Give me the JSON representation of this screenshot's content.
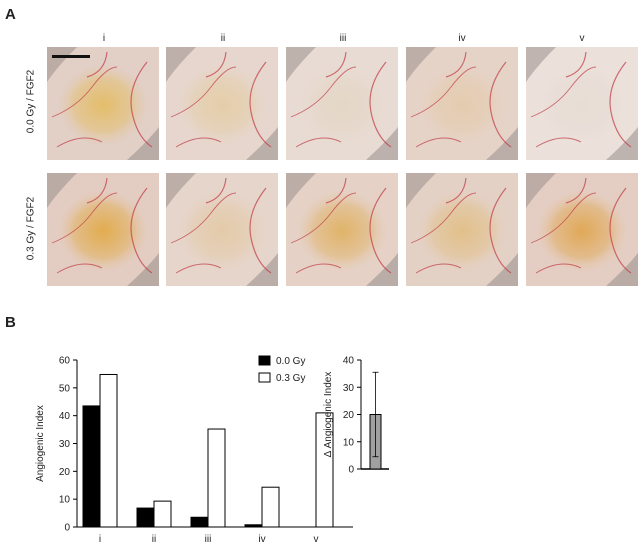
{
  "panel_a": {
    "letter": "A",
    "columns": [
      "i",
      "ii",
      "iii",
      "iv",
      "v"
    ],
    "rows": [
      "0.0 Gy / FGF2",
      "0.3 Gy / FGF2"
    ],
    "photos": [
      {
        "name": "photo-0gy-i",
        "tissue": "#e4b84c",
        "glow": 0.75,
        "bg": "#e2cfc6"
      },
      {
        "name": "photo-0gy-ii",
        "tissue": "#e3c78a",
        "glow": 0.55,
        "bg": "#e6d6cd"
      },
      {
        "name": "photo-0gy-iii",
        "tissue": "#dccfae",
        "glow": 0.35,
        "bg": "#e8dbd3"
      },
      {
        "name": "photo-0gy-iv",
        "tissue": "#e2c38f",
        "glow": 0.45,
        "bg": "#e6d3c8"
      },
      {
        "name": "photo-0gy-v",
        "tissue": "#ddd4c4",
        "glow": 0.25,
        "bg": "#ebe0da"
      },
      {
        "name": "photo-03gy-i",
        "tissue": "#e2a73b",
        "glow": 0.85,
        "bg": "#e3cdc3"
      },
      {
        "name": "photo-03gy-ii",
        "tissue": "#e1bf86",
        "glow": 0.5,
        "bg": "#e6d5cb"
      },
      {
        "name": "photo-03gy-iii",
        "tissue": "#dfac52",
        "glow": 0.8,
        "bg": "#e5d1c6"
      },
      {
        "name": "photo-03gy-iv",
        "tissue": "#e0b769",
        "glow": 0.65,
        "bg": "#e4d1c6"
      },
      {
        "name": "photo-03gy-v",
        "tissue": "#e0a244",
        "glow": 0.85,
        "bg": "#e4cec3"
      }
    ]
  },
  "panel_b": {
    "letter": "B"
  },
  "chart_data": [
    {
      "type": "bar",
      "categories": [
        "i",
        "ii",
        "iii",
        "iv",
        "v"
      ],
      "series": [
        {
          "name": "0.0 Gy",
          "values": [
            43.5,
            6.8,
            3.5,
            0.8,
            0
          ],
          "color": "#000000"
        },
        {
          "name": "0.3 Gy",
          "values": [
            54.8,
            9.3,
            35.2,
            14.3,
            41
          ],
          "color": "#ffffff"
        }
      ],
      "ylabel": "Angiogenic Index",
      "ylim": [
        0,
        60
      ],
      "yticks": [
        0,
        10,
        20,
        30,
        40,
        50,
        60
      ],
      "legend": "top-right",
      "grid": false
    },
    {
      "type": "bar",
      "categories": [
        ""
      ],
      "values": [
        20
      ],
      "error": [
        15.5
      ],
      "color": "#a0a0a0",
      "ylabel": "Δ Angiogenic Index",
      "ylim": [
        0,
        40
      ],
      "yticks": [
        0,
        10,
        20,
        30,
        40
      ],
      "grid": false
    }
  ]
}
